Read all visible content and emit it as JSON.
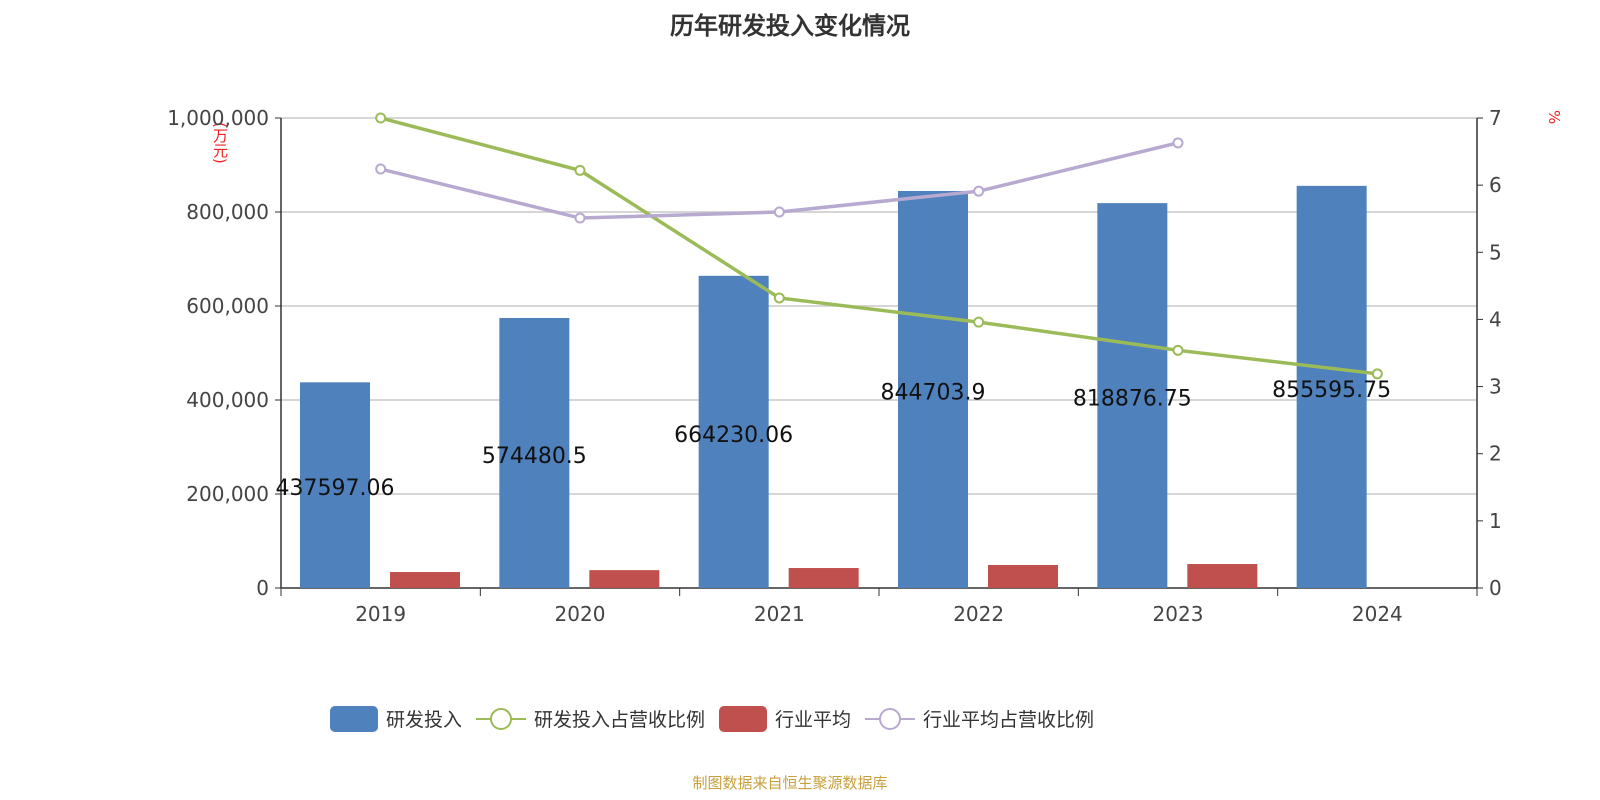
{
  "chart_data": {
    "type": "bar",
    "title": "历年研发投入变化情况",
    "categories": [
      "2019",
      "2020",
      "2021",
      "2022",
      "2023",
      "2024"
    ],
    "y_left": {
      "label": "(万元)",
      "range": [
        0,
        1000000
      ],
      "ticks": [
        "0",
        "200,000",
        "400,000",
        "600,000",
        "800,000",
        "1,000,000"
      ]
    },
    "y_right": {
      "label": "%",
      "range": [
        0,
        7
      ],
      "ticks": [
        "0",
        "1",
        "2",
        "3",
        "4",
        "5",
        "6",
        "7"
      ]
    },
    "grid": true,
    "legend_position": "bottom",
    "series": [
      {
        "name": "研发投入",
        "type": "bar",
        "axis": "left",
        "color": "#4f81bd",
        "values": [
          437597.06,
          574480.5,
          664230.06,
          844703.9,
          818876.75,
          855595.75
        ],
        "labels": [
          "437597.06",
          "574480.5",
          "664230.06",
          "844703.9",
          "818876.75",
          "855595.75"
        ]
      },
      {
        "name": "研发投入占营收比例",
        "type": "line",
        "axis": "right",
        "color": "#9bbb59",
        "values": [
          7.0,
          6.22,
          4.32,
          3.96,
          3.54,
          3.19
        ]
      },
      {
        "name": "行业平均",
        "type": "bar",
        "axis": "left",
        "color": "#c0504d",
        "values": [
          34000,
          38000,
          42500,
          49000,
          51000,
          null
        ]
      },
      {
        "name": "行业平均占营收比例",
        "type": "line",
        "axis": "right",
        "color": "#b7a9cf",
        "values": [
          6.24,
          5.51,
          5.6,
          5.91,
          6.63,
          null
        ]
      }
    ]
  },
  "source": "制图数据来自恒生聚源数据库"
}
